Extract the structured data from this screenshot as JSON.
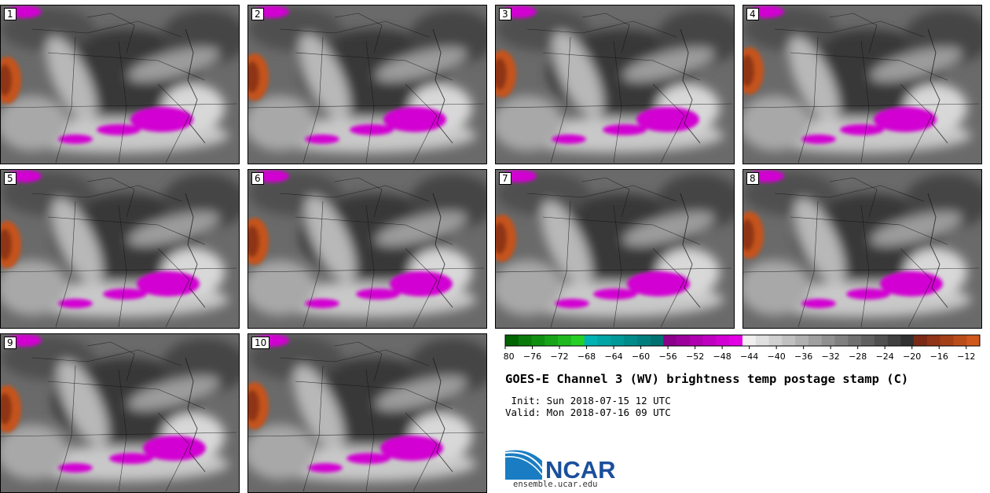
{
  "chart_data": {
    "type": "heatmap",
    "title": "GOES-E Channel 3 (WV) brightness temp postage stamp (C)",
    "init_label": " Init: Sun 2018-07-15 12 UTC",
    "valid_label": "Valid: Mon 2018-07-16 09 UTC",
    "members": [
      "1",
      "2",
      "3",
      "4",
      "5",
      "6",
      "7",
      "8",
      "9",
      "10"
    ],
    "colorbar": {
      "min": -80,
      "max": -10,
      "step": 2,
      "tick_labels": [
        "−80",
        "−76",
        "−72",
        "−68",
        "−64",
        "−60",
        "−56",
        "−52",
        "−48",
        "−44",
        "−40",
        "−36",
        "−32",
        "−28",
        "−24",
        "−20",
        "−16",
        "−12"
      ],
      "tick_values": [
        -80,
        -76,
        -72,
        -68,
        -64,
        -60,
        -56,
        -52,
        -48,
        -44,
        -40,
        -36,
        -32,
        -28,
        -24,
        -20,
        -16,
        -12
      ],
      "colors": [
        "#006400",
        "#0a7a0a",
        "#118f11",
        "#18a418",
        "#1fb91f",
        "#26cf26",
        "#00b2b2",
        "#00a5a5",
        "#009898",
        "#008b8b",
        "#007e7e",
        "#007171",
        "#8a008a",
        "#9c009c",
        "#ae00ae",
        "#c000c0",
        "#d200d2",
        "#e400e4",
        "#f0f0f0",
        "#e0e0e0",
        "#d0d0d0",
        "#c0c0c0",
        "#b0b0b0",
        "#a0a0a0",
        "#909090",
        "#808080",
        "#707070",
        "#606060",
        "#505050",
        "#404040",
        "#303030",
        "#7a2a14",
        "#8f3416",
        "#a44018",
        "#ba4c1a",
        "#d0581c"
      ]
    }
  },
  "branding": {
    "logo_text": "NCAR",
    "url": "ensemble.ucar.edu",
    "logo_color": "#1b4f9c"
  }
}
